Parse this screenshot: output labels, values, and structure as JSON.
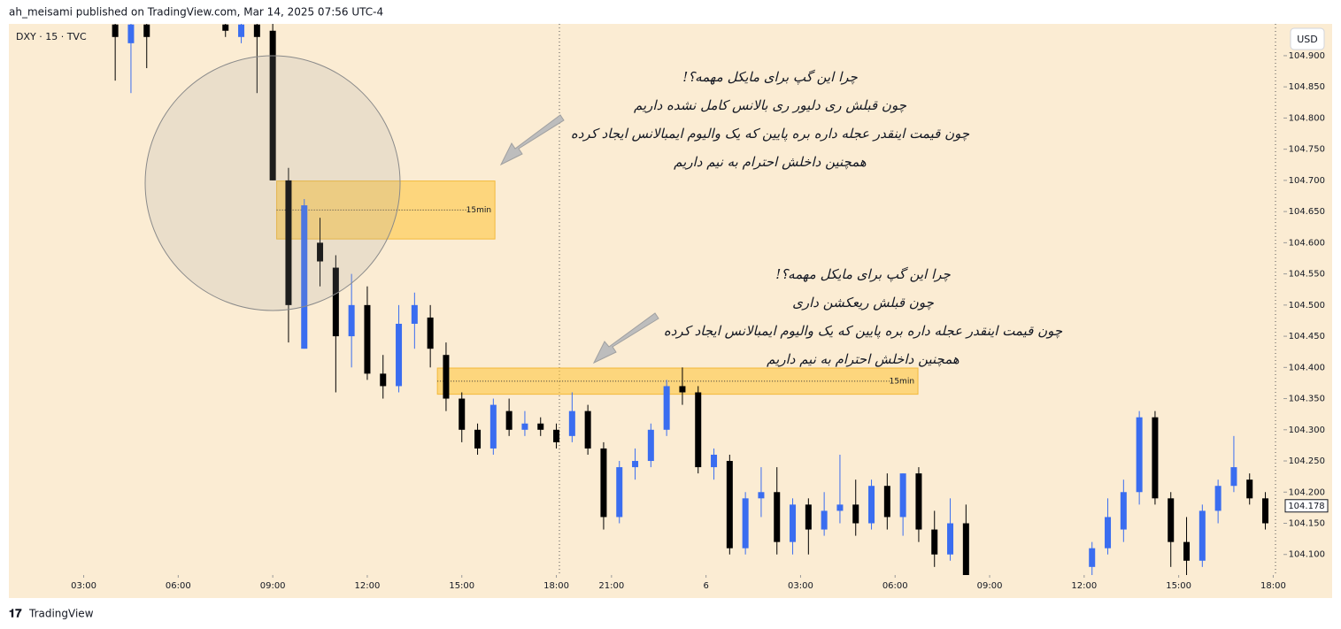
{
  "header": "ah_meisami published on TradingView.com, Mar 14, 2025 07:56 UTC-4",
  "footer": "TradingView",
  "chart_data": {
    "type": "candlestick",
    "symbol": "DXY · 15 · TVC",
    "currency": "USD",
    "bull_color": "#3a6df0",
    "bear_color": "#000000",
    "background": "#fbecd3",
    "ylim": [
      104.067,
      104.951
    ],
    "yticks": [
      {
        "value": 104.1,
        "label": "104.100"
      },
      {
        "value": 104.15,
        "label": "104.150"
      },
      {
        "value": 104.2,
        "label": "104.200"
      },
      {
        "value": 104.25,
        "label": "104.250"
      },
      {
        "value": 104.3,
        "label": "104.300"
      },
      {
        "value": 104.35,
        "label": "104.350"
      },
      {
        "value": 104.4,
        "label": "104.400"
      },
      {
        "value": 104.45,
        "label": "104.450"
      },
      {
        "value": 104.5,
        "label": "104.500"
      },
      {
        "value": 104.55,
        "label": "104.550"
      },
      {
        "value": 104.6,
        "label": "104.600"
      },
      {
        "value": 104.65,
        "label": "104.650"
      },
      {
        "value": 104.7,
        "label": "104.700"
      },
      {
        "value": 104.75,
        "label": "104.750"
      },
      {
        "value": 104.8,
        "label": "104.800"
      },
      {
        "value": 104.85,
        "label": "104.850"
      },
      {
        "value": 104.9,
        "label": "104.900"
      }
    ],
    "xlim": [
      -4.75,
      76.15
    ],
    "xticks": [
      {
        "value": 0,
        "label": "03:00"
      },
      {
        "value": 6,
        "label": "06:00"
      },
      {
        "value": 12,
        "label": "09:00"
      },
      {
        "value": 18,
        "label": "12:00"
      },
      {
        "value": 24,
        "label": "15:00"
      },
      {
        "value": 30,
        "label": "18:00"
      },
      {
        "value": 33.5,
        "label": "21:00"
      },
      {
        "value": 39.5,
        "label": "6"
      },
      {
        "value": 45.5,
        "label": "03:00"
      },
      {
        "value": 51.5,
        "label": "06:00"
      },
      {
        "value": 57.5,
        "label": "09:00"
      },
      {
        "value": 63.5,
        "label": "12:00"
      },
      {
        "value": 69.5,
        "label": "15:00"
      },
      {
        "value": 75.5,
        "label": "18:00"
      }
    ],
    "last_price": 104.178,
    "x": [
      2,
      3,
      4,
      9,
      10,
      11,
      12,
      13,
      14,
      15,
      16,
      17,
      18,
      19,
      20,
      21,
      22,
      23,
      24,
      25,
      26,
      27,
      28,
      29,
      30,
      31,
      32,
      33,
      34,
      35,
      36,
      37,
      38,
      39,
      40,
      41,
      42,
      43,
      44,
      45,
      46,
      47,
      48,
      49,
      50,
      51,
      52,
      53,
      54,
      55,
      56,
      64,
      65,
      66,
      67,
      68,
      69,
      70,
      71,
      72,
      73,
      74,
      75
    ],
    "open": [
      104.95,
      104.92,
      104.95,
      104.95,
      104.93,
      104.95,
      104.94,
      104.7,
      104.43,
      104.6,
      104.56,
      104.45,
      104.5,
      104.39,
      104.37,
      104.47,
      104.48,
      104.42,
      104.35,
      104.3,
      104.27,
      104.33,
      104.3,
      104.31,
      104.3,
      104.29,
      104.33,
      104.27,
      104.16,
      104.24,
      104.25,
      104.3,
      104.37,
      104.36,
      104.24,
      104.25,
      104.11,
      104.19,
      104.2,
      104.12,
      104.18,
      104.14,
      104.17,
      104.18,
      104.15,
      104.21,
      104.16,
      104.23,
      104.14,
      104.1,
      104.15,
      104.08,
      104.11,
      104.14,
      104.2,
      104.32,
      104.19,
      104.12,
      104.09,
      104.17,
      104.21,
      104.22,
      104.19
    ],
    "high": [
      104.99,
      104.97,
      104.97,
      104.99,
      104.97,
      104.98,
      104.96,
      104.72,
      104.67,
      104.64,
      104.58,
      104.55,
      104.53,
      104.42,
      104.5,
      104.52,
      104.5,
      104.44,
      104.36,
      104.31,
      104.35,
      104.35,
      104.33,
      104.32,
      104.31,
      104.36,
      104.34,
      104.28,
      104.25,
      104.27,
      104.31,
      104.38,
      104.4,
      104.37,
      104.27,
      104.26,
      104.2,
      104.24,
      104.24,
      104.19,
      104.19,
      104.2,
      104.26,
      104.22,
      104.22,
      104.23,
      104.23,
      104.24,
      104.17,
      104.19,
      104.18,
      104.12,
      104.19,
      104.22,
      104.33,
      104.33,
      104.2,
      104.16,
      104.18,
      104.22,
      104.29,
      104.23,
      104.2
    ],
    "low": [
      104.86,
      104.84,
      104.88,
      104.93,
      104.92,
      104.84,
      104.7,
      104.44,
      104.43,
      104.53,
      104.36,
      104.4,
      104.38,
      104.35,
      104.36,
      104.43,
      104.4,
      104.33,
      104.28,
      104.26,
      104.26,
      104.29,
      104.29,
      104.29,
      104.27,
      104.28,
      104.26,
      104.14,
      104.15,
      104.22,
      104.24,
      104.29,
      104.34,
      104.23,
      104.22,
      104.1,
      104.1,
      104.16,
      104.1,
      104.1,
      104.1,
      104.13,
      104.15,
      104.13,
      104.14,
      104.14,
      104.13,
      104.12,
      104.08,
      104.09,
      104.05,
      104.05,
      104.1,
      104.12,
      104.18,
      104.18,
      104.08,
      104.05,
      104.08,
      104.15,
      104.2,
      104.18,
      104.14
    ],
    "close": [
      104.93,
      104.95,
      104.93,
      104.94,
      104.95,
      104.93,
      104.7,
      104.5,
      104.66,
      104.57,
      104.45,
      104.5,
      104.39,
      104.37,
      104.47,
      104.5,
      104.43,
      104.35,
      104.3,
      104.27,
      104.34,
      104.3,
      104.31,
      104.3,
      104.28,
      104.33,
      104.27,
      104.16,
      104.24,
      104.25,
      104.3,
      104.37,
      104.36,
      104.24,
      104.26,
      104.11,
      104.19,
      104.2,
      104.12,
      104.18,
      104.14,
      104.17,
      104.18,
      104.15,
      104.21,
      104.16,
      104.23,
      104.14,
      104.1,
      104.15,
      104.06,
      104.11,
      104.16,
      104.2,
      104.32,
      104.19,
      104.12,
      104.09,
      104.17,
      104.21,
      104.24,
      104.19,
      104.15
    ],
    "zones": [
      {
        "label": "15min",
        "x0": 12.25,
        "x1": 26.1,
        "y0": 104.606,
        "y1": 104.699
      },
      {
        "label": "15min",
        "x0": 22.45,
        "x1": 52.95,
        "y0": 104.357,
        "y1": 104.399
      }
    ],
    "annotations": [
      {
        "lines": [
          "چرا این گپ برای مایکل مهمه؟!",
          "چون قبلش ری دلیور ری بالانس کامل نشده داریم",
          "چون قیمت اینقدر عجله داره بره پایین که یک والیوم ایمبالانس ایجاد کرده",
          "همچنین داخلش احترام به نیم داریم"
        ]
      },
      {
        "lines": [
          "چرا این گپ برای مایکل مهمه؟!",
          "چون قبلش ریعکشن داری",
          "چون قیمت اینقدر عجله داره بره پایین که یک والیوم ایمبالانس ایجاد کرده",
          "همچنین داخلش احترام به نیم داریم"
        ]
      }
    ]
  }
}
